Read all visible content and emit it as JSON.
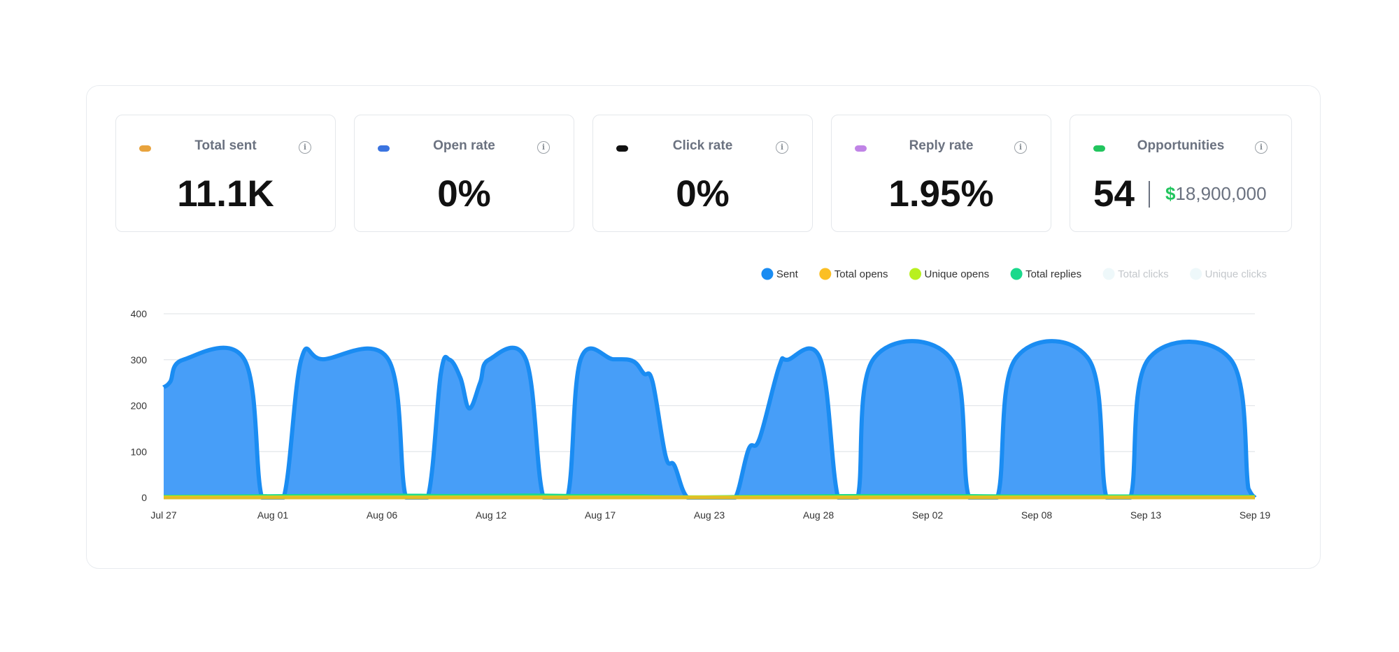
{
  "cards": [
    {
      "title": "Total sent",
      "value": "11.1K",
      "color": "#e8a33d",
      "icon": "info-icon"
    },
    {
      "title": "Open rate",
      "value": "0%",
      "color": "#3b74e0",
      "icon": "info-icon"
    },
    {
      "title": "Click rate",
      "value": "0%",
      "color": "#111111",
      "icon": "info-icon"
    },
    {
      "title": "Reply rate",
      "value": "1.95%",
      "color": "#c084e6",
      "icon": "info-icon"
    },
    {
      "title": "Opportunities",
      "value": "54",
      "money_symbol": "$",
      "money_value": "18,900,000",
      "color": "#22c55e",
      "icon": "info-icon"
    }
  ],
  "info_glyph": "i",
  "chart_data": {
    "type": "area",
    "legend": [
      {
        "name": "Sent",
        "color": "#1a8cf2",
        "active": true
      },
      {
        "name": "Total opens",
        "color": "#fbbf24",
        "active": true
      },
      {
        "name": "Unique opens",
        "color": "#b8f01f",
        "active": true
      },
      {
        "name": "Total replies",
        "color": "#1ad98c",
        "active": true
      },
      {
        "name": "Total clicks",
        "color": "#eef8fa",
        "active": false
      },
      {
        "name": "Unique clicks",
        "color": "#eef8fa",
        "active": false
      }
    ],
    "legend_position": "top-right",
    "grid": true,
    "ylim": [
      0,
      400
    ],
    "yticks": [
      0,
      100,
      200,
      300,
      400
    ],
    "x_tick_labels": [
      "Jul 27",
      "Aug 01",
      "Aug 06",
      "Aug 12",
      "Aug 17",
      "Aug 23",
      "Aug 28",
      "Sep 02",
      "Sep 08",
      "Sep 13",
      "Sep 19"
    ],
    "x_tick_positions": [
      0,
      5,
      10,
      15,
      20,
      25,
      30,
      35,
      40,
      45,
      50
    ],
    "x_range": [
      0,
      50
    ],
    "series": [
      {
        "name": "Sent",
        "color": "#1a8cf2",
        "fill": "#479ef8",
        "points": [
          [
            0,
            240
          ],
          [
            0.3,
            252
          ],
          [
            0.9,
            300
          ],
          [
            3.7,
            300
          ],
          [
            4.5,
            0
          ],
          [
            5.5,
            0
          ],
          [
            6.3,
            300
          ],
          [
            7.3,
            301
          ],
          [
            10.3,
            300
          ],
          [
            11.1,
            0
          ],
          [
            12.1,
            0
          ],
          [
            12.7,
            270
          ],
          [
            13.1,
            300
          ],
          [
            13.6,
            260
          ],
          [
            14.0,
            194
          ],
          [
            14.5,
            250
          ],
          [
            14.9,
            300
          ],
          [
            16.6,
            300
          ],
          [
            17.4,
            0
          ],
          [
            18.5,
            0
          ],
          [
            19.1,
            300
          ],
          [
            20.6,
            301
          ],
          [
            21.5,
            297
          ],
          [
            22.0,
            270
          ],
          [
            22.4,
            252
          ],
          [
            23.0,
            90
          ],
          [
            23.4,
            70
          ],
          [
            24.0,
            0
          ],
          [
            25.0,
            0
          ],
          [
            25.6,
            0
          ],
          [
            26.2,
            0
          ],
          [
            26.8,
            105
          ],
          [
            27.3,
            128
          ],
          [
            28.2,
            285
          ],
          [
            28.6,
            300
          ],
          [
            30.1,
            300
          ],
          [
            30.9,
            0
          ],
          [
            31.8,
            0
          ],
          [
            32.5,
            300
          ],
          [
            36.1,
            300
          ],
          [
            36.9,
            0
          ],
          [
            38.2,
            0
          ],
          [
            39.0,
            300
          ],
          [
            42.4,
            300
          ],
          [
            43.2,
            0
          ],
          [
            44.3,
            0
          ],
          [
            45.1,
            300
          ],
          [
            48.9,
            300
          ],
          [
            49.7,
            20
          ],
          [
            50,
            0
          ]
        ]
      },
      {
        "name": "Total opens",
        "color": "#e2bd27",
        "points": [
          [
            0,
            0
          ],
          [
            50,
            0
          ]
        ]
      },
      {
        "name": "Unique opens",
        "color": "#b8f01f",
        "points": [
          [
            0,
            1
          ],
          [
            50,
            1
          ]
        ]
      },
      {
        "name": "Total replies",
        "color": "#1ad98c",
        "points": [
          [
            0,
            2
          ],
          [
            6.3,
            4
          ],
          [
            10.3,
            5
          ],
          [
            13.1,
            4
          ],
          [
            16.6,
            5
          ],
          [
            19.1,
            4
          ],
          [
            21.5,
            4
          ],
          [
            24.0,
            1
          ],
          [
            28.6,
            3
          ],
          [
            32.5,
            4
          ],
          [
            36.1,
            4
          ],
          [
            39.0,
            3
          ],
          [
            42.4,
            3
          ],
          [
            45.1,
            3
          ],
          [
            50,
            2
          ]
        ]
      }
    ]
  }
}
